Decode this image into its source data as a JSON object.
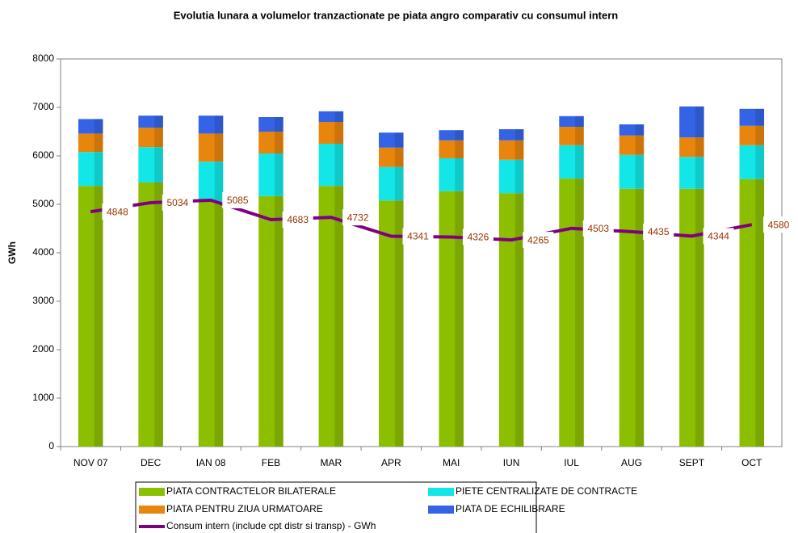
{
  "chart_data": {
    "type": "bar",
    "stacked": true,
    "title": "Evolutia lunara a volumelor tranzactionate pe piata angro comparativ cu consumul intern",
    "y_label": "GWh",
    "categories": [
      "NOV 07",
      "DEC",
      "IAN 08",
      "FEB",
      "MAR",
      "APR",
      "MAI",
      "IUN",
      "IUL",
      "AUG",
      "SEPT",
      "OCT"
    ],
    "series": [
      {
        "name": "PIATA CONTRACTELOR BILATERALE",
        "color": "#8cbf00",
        "values": [
          5380,
          5450,
          5050,
          5170,
          5380,
          5080,
          5270,
          5230,
          5530,
          5320,
          5320,
          5520
        ]
      },
      {
        "name": "PIETE CENTRALIZATE DE CONTRACTE",
        "color": "#13e6e6",
        "values": [
          700,
          730,
          830,
          880,
          870,
          690,
          680,
          690,
          690,
          700,
          660,
          700
        ]
      },
      {
        "name": "PIATA PENTRU ZIUA URMATOARE",
        "color": "#e8850c",
        "values": [
          380,
          400,
          580,
          450,
          450,
          400,
          370,
          400,
          380,
          400,
          400,
          400
        ]
      },
      {
        "name": "PIATA DE ECHILIBRARE",
        "color": "#3563e6",
        "values": [
          300,
          250,
          370,
          300,
          220,
          310,
          210,
          230,
          220,
          230,
          640,
          350
        ]
      },
      {
        "name": "Consum intern (include cpt distr si transp) - GWh",
        "color": "#800080",
        "type": "line",
        "values": [
          4848,
          5034,
          5085,
          4683,
          4732,
          4341,
          4326,
          4265,
          4503,
          4435,
          4344,
          4580
        ]
      }
    ],
    "ylim": [
      0,
      8000
    ],
    "yticks": [
      0,
      1000,
      2000,
      3000,
      4000,
      5000,
      6000,
      7000,
      8000
    ],
    "legend": "bottom"
  }
}
